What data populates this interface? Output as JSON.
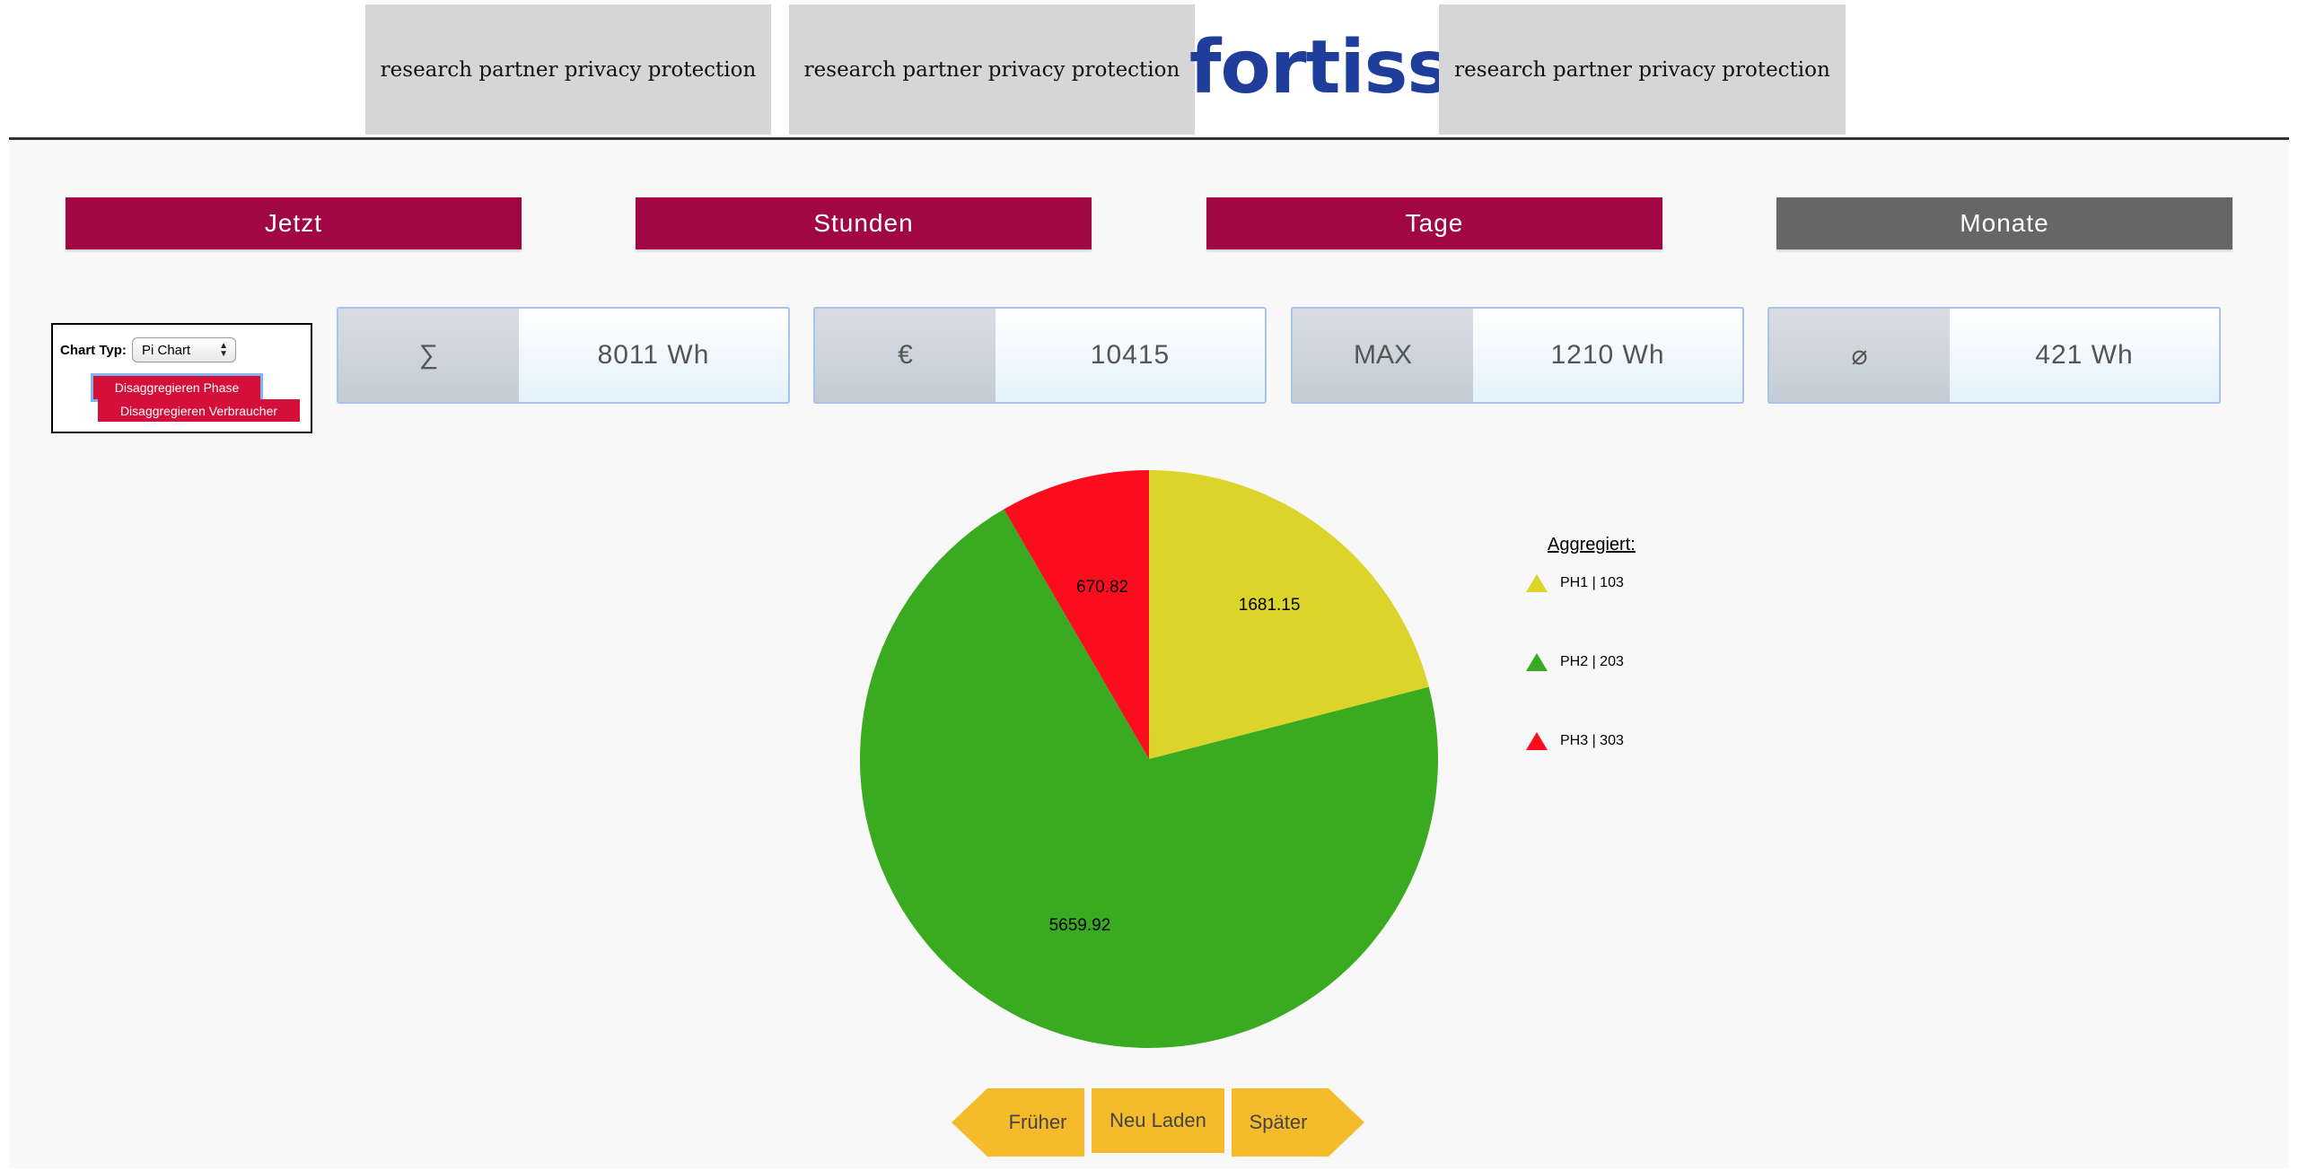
{
  "header": {
    "banners": [
      "research partner privacy protection",
      "research partner privacy protection",
      "research partner privacy protection"
    ],
    "logo_text": "fortiss",
    "brand_color": "#1f3d9b"
  },
  "range_buttons": {
    "jetzt": "Jetzt",
    "stunden": "Stunden",
    "tage": "Tage",
    "monate": "Monate",
    "active_color": "#a10645",
    "inactive_color": "#666666"
  },
  "controls": {
    "chart_type_label": "Chart Typ:",
    "chart_type_value": "Pi Chart",
    "disagg_phase": "Disaggregieren Phase",
    "disagg_verbraucher": "Disaggregieren Verbraucher"
  },
  "stats": {
    "sum": {
      "symbol": "∑",
      "value": "8011 Wh"
    },
    "cost": {
      "symbol": "€",
      "value": "10415"
    },
    "max": {
      "symbol": "MAX",
      "value": "1210 Wh"
    },
    "avg": {
      "symbol": "⌀",
      "value": "421 Wh"
    }
  },
  "chart_data": {
    "type": "pie",
    "slices": [
      {
        "label": "PH1 | 103",
        "value": 1681.15,
        "color": "#dcd42a"
      },
      {
        "label": "PH2 | 203",
        "value": 5659.92,
        "color": "#3aab20"
      },
      {
        "label": "PH3 | 303",
        "value": 670.82,
        "color": "#fb0d1e"
      }
    ],
    "value_labels": [
      "1681.15",
      "5659.92",
      "670.82"
    ],
    "legend_title": "Aggregiert:",
    "legend_position": "right"
  },
  "nav": {
    "earlier": "Früher",
    "reload": "Neu Laden",
    "later": "Später"
  }
}
